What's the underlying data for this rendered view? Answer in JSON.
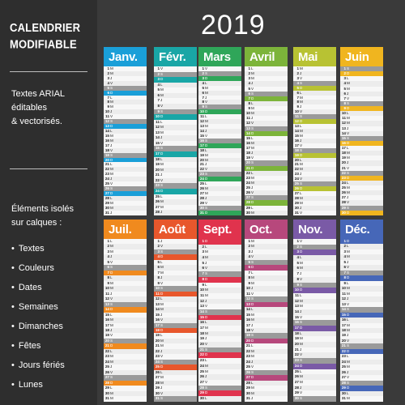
{
  "sidebar": {
    "title_line1": "CALENDRIER",
    "title_line2": "MODIFIABLE",
    "desc_line1": "Textes ARIAL",
    "desc_line2": "éditables",
    "desc_line3": "& vectorisés.",
    "iso_line1": "Éléments isolés",
    "iso_line2": "sur calques :",
    "items": [
      "Textes",
      "Couleurs",
      "Dates",
      "Semaines",
      "Dimanches",
      "Fêtes",
      "Jours fériés",
      "Lunes"
    ]
  },
  "calendar": {
    "year": "2019",
    "months": [
      {
        "name": "Janv.",
        "color": "#1a9fd8",
        "days": 31,
        "start": 1
      },
      {
        "name": "Févr.",
        "color": "#19a6a6",
        "days": 28,
        "start": 4
      },
      {
        "name": "Mars",
        "color": "#2fa659",
        "days": 31,
        "start": 4
      },
      {
        "name": "Avril",
        "color": "#7cb43a",
        "days": 30,
        "start": 0
      },
      {
        "name": "Mai",
        "color": "#b8c233",
        "days": 31,
        "start": 2
      },
      {
        "name": "Juin",
        "color": "#f0b51f",
        "days": 30,
        "start": 5
      },
      {
        "name": "Juil.",
        "color": "#f08a1e",
        "days": 31,
        "start": 0
      },
      {
        "name": "Août",
        "color": "#e8572c",
        "days": 31,
        "start": 3
      },
      {
        "name": "Sept.",
        "color": "#e0334d",
        "days": 30,
        "start": 6
      },
      {
        "name": "Oct.",
        "color": "#b7487c",
        "days": 31,
        "start": 1
      },
      {
        "name": "Nov.",
        "color": "#7a5aa6",
        "days": 30,
        "start": 4
      },
      {
        "name": "Déc.",
        "color": "#4667b8",
        "days": 31,
        "start": 6
      }
    ],
    "weekday_letters": [
      "L",
      "M",
      "M",
      "J",
      "V",
      "S",
      "D"
    ],
    "weekend_shade": "#9a9a9a"
  }
}
